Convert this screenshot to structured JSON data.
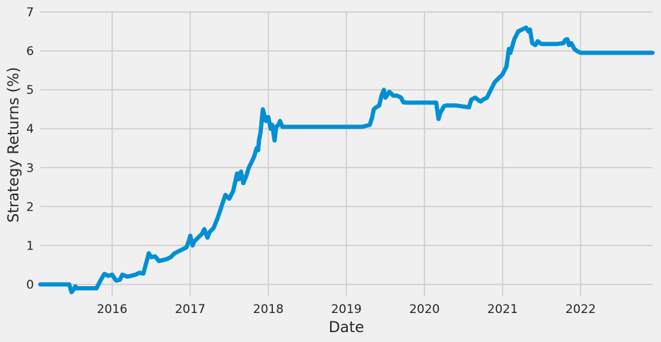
{
  "chart_data": {
    "type": "line",
    "title": "",
    "xlabel": "Date",
    "ylabel": "Strategy Returns (%)",
    "xlim": [
      2015.08,
      2022.92
    ],
    "ylim": [
      -0.3,
      7
    ],
    "grid": true,
    "x_ticks": [
      2016,
      2017,
      2018,
      2019,
      2020,
      2021,
      2022
    ],
    "x_tick_labels": [
      "2016",
      "2017",
      "2018",
      "2019",
      "2020",
      "2021",
      "2022"
    ],
    "y_ticks": [
      0,
      1,
      2,
      3,
      4,
      5,
      6,
      7
    ],
    "y_tick_labels": [
      "0",
      "1",
      "2",
      "3",
      "4",
      "5",
      "6",
      "7"
    ],
    "colors": {
      "line": "#008fd5",
      "background": "#f0f0f0",
      "grid": "#cbcbcb",
      "text": "#262626"
    },
    "series": [
      {
        "name": "Strategy Returns",
        "x": [
          2015.08,
          2015.45,
          2015.48,
          2015.5,
          2015.53,
          2015.55,
          2015.58,
          2015.8,
          2015.85,
          2015.9,
          2015.95,
          2016.0,
          2016.05,
          2016.1,
          2016.13,
          2016.17,
          2016.2,
          2016.3,
          2016.35,
          2016.4,
          2016.43,
          2016.47,
          2016.5,
          2016.55,
          2016.6,
          2016.7,
          2016.75,
          2016.8,
          2016.85,
          2016.9,
          2016.95,
          2016.98,
          2017.0,
          2017.03,
          2017.05,
          2017.1,
          2017.15,
          2017.18,
          2017.22,
          2017.25,
          2017.3,
          2017.35,
          2017.4,
          2017.45,
          2017.5,
          2017.55,
          2017.6,
          2017.62,
          2017.65,
          2017.68,
          2017.72,
          2017.75,
          2017.8,
          2017.82,
          2017.85,
          2017.87,
          2017.88,
          2017.9,
          2017.93,
          2017.97,
          2018.0,
          2018.03,
          2018.05,
          2018.08,
          2018.1,
          2018.13,
          2018.15,
          2018.18,
          2018.22,
          2018.4,
          2018.6,
          2018.8,
          2019.0,
          2019.2,
          2019.3,
          2019.33,
          2019.35,
          2019.38,
          2019.42,
          2019.45,
          2019.48,
          2019.5,
          2019.55,
          2019.6,
          2019.65,
          2019.7,
          2019.73,
          2019.78,
          2020.0,
          2020.15,
          2020.18,
          2020.2,
          2020.25,
          2020.28,
          2020.32,
          2020.4,
          2020.5,
          2020.57,
          2020.6,
          2020.65,
          2020.7,
          2020.72,
          2020.75,
          2020.8,
          2020.85,
          2020.9,
          2020.95,
          2021.0,
          2021.05,
          2021.08,
          2021.1,
          2021.15,
          2021.2,
          2021.25,
          2021.3,
          2021.33,
          2021.35,
          2021.38,
          2021.42,
          2021.45,
          2021.48,
          2021.5,
          2021.6,
          2021.7,
          2021.78,
          2021.8,
          2021.83,
          2021.85,
          2021.88,
          2021.92,
          2021.95,
          2022.0,
          2022.2,
          2022.5,
          2022.7,
          2022.92
        ],
        "y": [
          0.0,
          0.0,
          -0.2,
          -0.15,
          -0.05,
          -0.1,
          -0.1,
          -0.1,
          0.1,
          0.27,
          0.22,
          0.25,
          0.1,
          0.12,
          0.25,
          0.22,
          0.2,
          0.25,
          0.3,
          0.28,
          0.5,
          0.8,
          0.7,
          0.72,
          0.6,
          0.65,
          0.7,
          0.8,
          0.85,
          0.9,
          0.95,
          1.1,
          1.25,
          1.0,
          1.1,
          1.2,
          1.3,
          1.42,
          1.2,
          1.35,
          1.45,
          1.7,
          2.0,
          2.3,
          2.2,
          2.4,
          2.85,
          2.7,
          2.9,
          2.6,
          2.8,
          3.0,
          3.2,
          3.3,
          3.5,
          3.45,
          3.7,
          3.9,
          4.5,
          4.2,
          4.3,
          4.0,
          4.1,
          3.7,
          4.05,
          4.1,
          4.2,
          4.05,
          4.05,
          4.05,
          4.05,
          4.05,
          4.05,
          4.05,
          4.1,
          4.3,
          4.5,
          4.55,
          4.6,
          4.85,
          5.0,
          4.8,
          4.95,
          4.85,
          4.85,
          4.8,
          4.68,
          4.67,
          4.67,
          4.67,
          4.25,
          4.4,
          4.58,
          4.6,
          4.6,
          4.6,
          4.57,
          4.55,
          4.75,
          4.8,
          4.72,
          4.7,
          4.75,
          4.8,
          5.0,
          5.2,
          5.3,
          5.4,
          5.6,
          6.05,
          5.95,
          6.3,
          6.5,
          6.55,
          6.6,
          6.5,
          6.55,
          6.2,
          6.15,
          6.25,
          6.2,
          6.18,
          6.18,
          6.18,
          6.2,
          6.28,
          6.3,
          6.15,
          6.2,
          6.05,
          6.0,
          5.95,
          5.95,
          5.95,
          5.95,
          5.95
        ]
      }
    ]
  }
}
